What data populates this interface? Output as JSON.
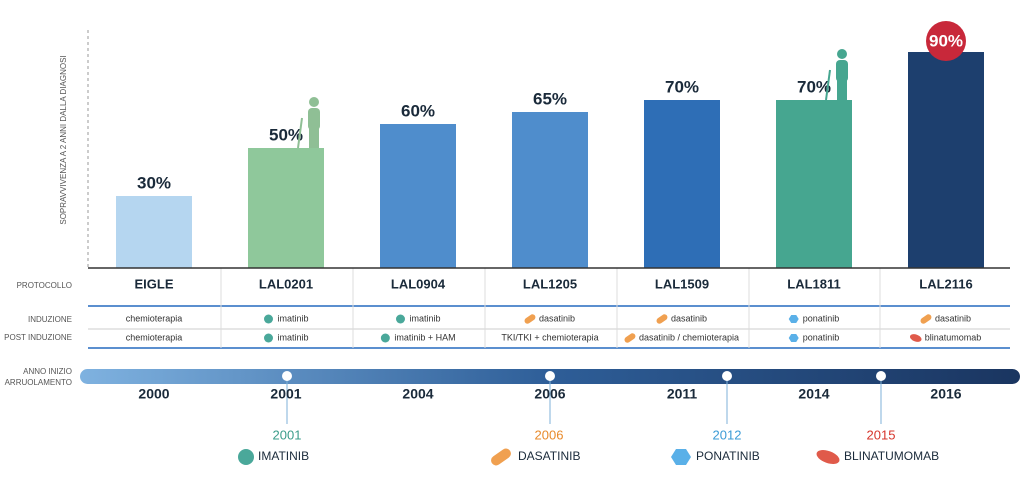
{
  "chart_data": {
    "type": "bar",
    "y_label": "SOPRAVVIVENZA A 2 ANNI DALLA DIAGNOSI",
    "categories": [
      "EIGLE",
      "LAL0201",
      "LAL0904",
      "LAL1205",
      "LAL1509",
      "LAL1811",
      "LAL2116"
    ],
    "values": [
      30,
      50,
      60,
      65,
      70,
      70,
      90
    ],
    "value_labels": [
      "30%",
      "50%",
      "60%",
      "65%",
      "70%",
      "70%",
      "90%"
    ],
    "colors": [
      "#b5d6f0",
      "#8fc89b",
      "#4f8dcc",
      "#4f8dcc",
      "#2e6eb6",
      "#46a690",
      "#1d3f6e"
    ],
    "ylim": [
      0,
      100
    ]
  },
  "table": {
    "protocol_label": "PROTOCOLLO",
    "induction": {
      "label": "INDUZIONE",
      "cells": [
        "chemioterapia",
        "imatinib",
        "imatinib",
        "dasatinib",
        "dasatinib",
        "ponatinib",
        "dasatinib"
      ]
    },
    "post_induction": {
      "label": "POST INDUZIONE",
      "cells": [
        "chemioterapia",
        "imatinib",
        "imatinib + HAM",
        "TKI/TKI + chemioterapia",
        "dasatinib / chemioterapia",
        "ponatinib",
        "blinatumomab"
      ]
    }
  },
  "timeline": {
    "label": "ANNO INIZIO ARRUOLAMENTO",
    "years": [
      "2000",
      "2001",
      "2004",
      "2006",
      "2011",
      "2014",
      "2016"
    ]
  },
  "drugs": [
    {
      "year": "2001",
      "name": "IMATINIB"
    },
    {
      "year": "2006",
      "name": "DASATINIB"
    },
    {
      "year": "2012",
      "name": "PONATINIB"
    },
    {
      "year": "2015",
      "name": "BLINATUMOMAB"
    }
  ]
}
